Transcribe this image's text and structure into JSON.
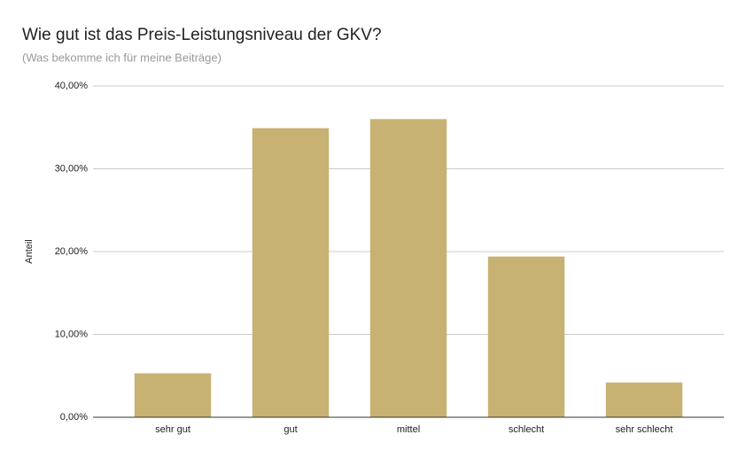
{
  "chart_data": {
    "type": "bar",
    "title": "Wie gut ist das Preis-Leistungsniveau der GKV?",
    "subtitle": "(Was bekomme ich für meine Beiträge)",
    "y_label": "Anteil",
    "categories": [
      "sehr gut",
      "gut",
      "mittel",
      "schlecht",
      "sehr schlecht"
    ],
    "values": [
      5.3,
      34.9,
      36.0,
      19.4,
      4.2
    ],
    "color": "#c8b273",
    "ylim": [
      0,
      40
    ],
    "yticks": [
      {
        "value": 0,
        "label": "0,00%"
      },
      {
        "value": 10,
        "label": "10,00%"
      },
      {
        "value": 20,
        "label": "20,00%"
      },
      {
        "value": 30,
        "label": "30,00%"
      },
      {
        "value": 40,
        "label": "40,00%"
      }
    ],
    "grid": true
  }
}
